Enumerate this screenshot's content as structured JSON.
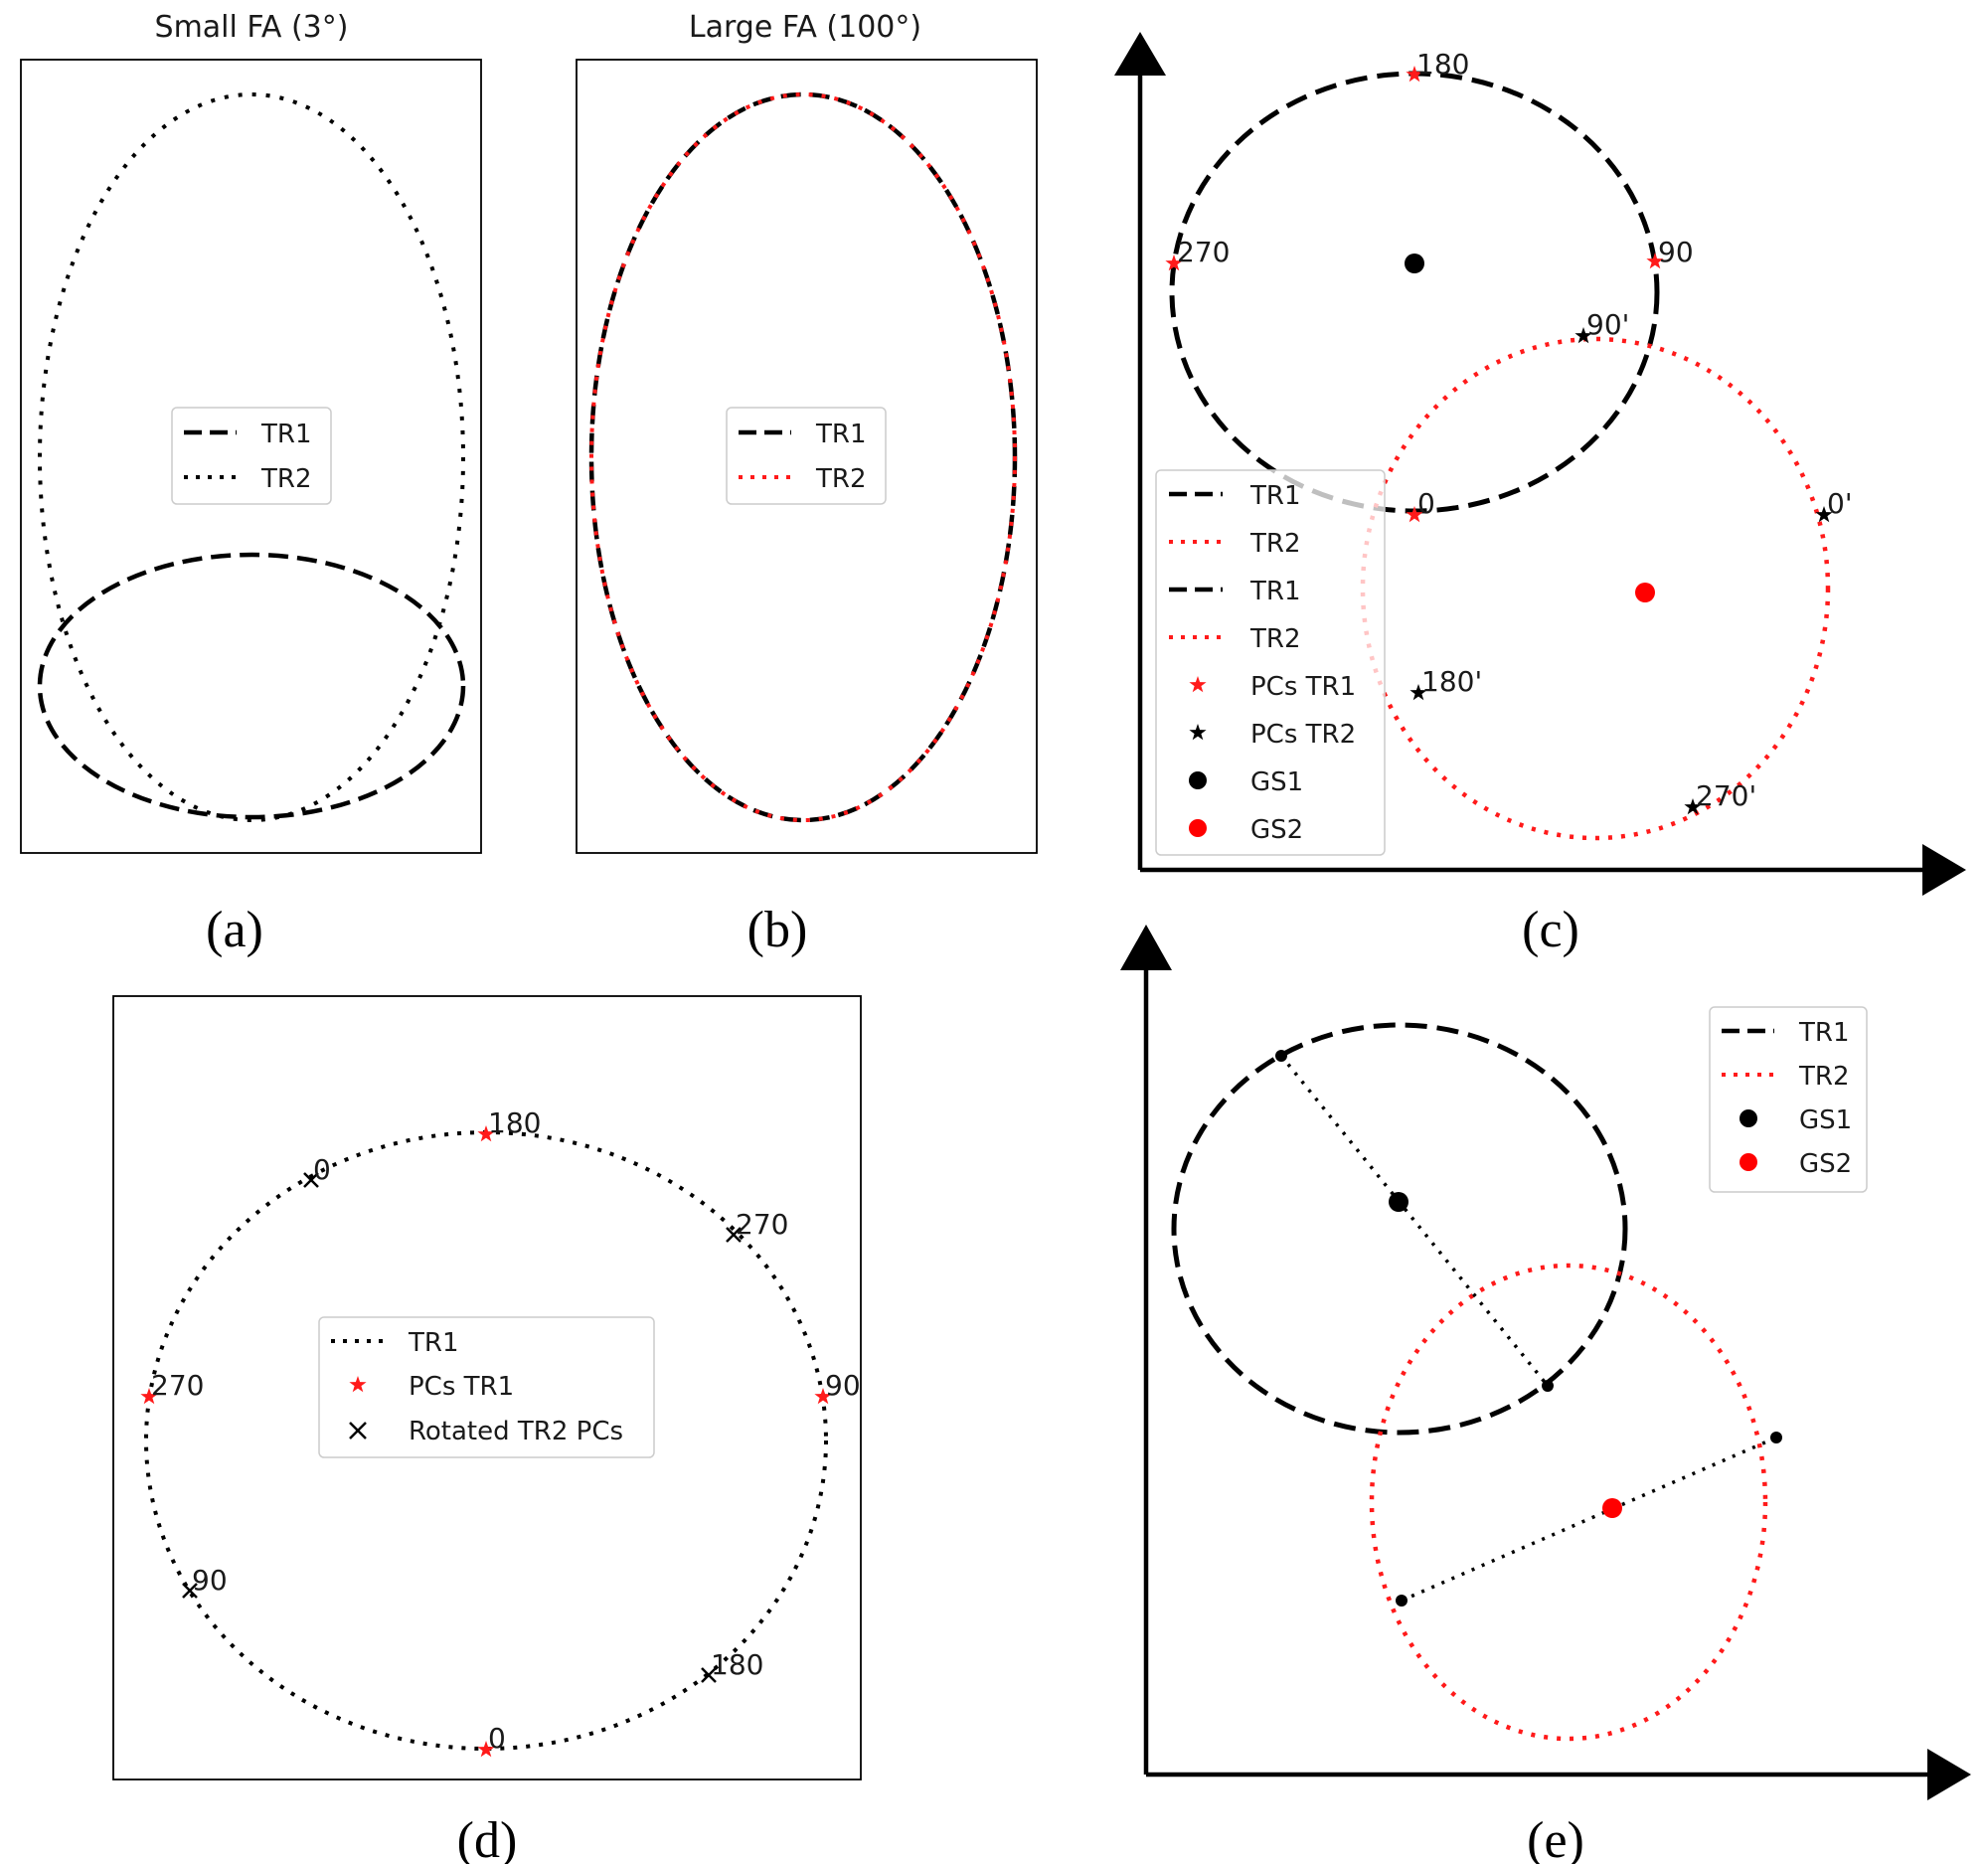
{
  "panel_a": {
    "title": "Small FA (3°)",
    "caption": "(a)",
    "legend": [
      "TR1",
      "TR2"
    ]
  },
  "panel_b": {
    "title": "Large FA (100°)",
    "caption": "(b)",
    "legend": [
      "TR1",
      "TR2"
    ]
  },
  "panel_c": {
    "caption": "(c)",
    "tr1_labels": [
      "180",
      "270",
      "90",
      "0"
    ],
    "tr2_labels": [
      "90'",
      "0'",
      "180'",
      "270'"
    ],
    "legend": [
      "TR1",
      "TR2",
      "TR1",
      "TR2",
      "PCs TR1",
      "PCs TR2",
      "GS1",
      "GS2"
    ]
  },
  "panel_d": {
    "caption": "(d)",
    "tr1_labels": [
      "180",
      "270",
      "90",
      "0"
    ],
    "tr2_labels": [
      "0",
      "270",
      "90",
      "180"
    ],
    "legend": [
      "TR1",
      "PCs TR1",
      "Rotated TR2 PCs"
    ]
  },
  "panel_e": {
    "caption": "(e)",
    "legend": [
      "TR1",
      "TR2",
      "GS1",
      "GS2"
    ]
  },
  "colors": {
    "tr1": "#000000",
    "tr2_red": "#ff1a1a",
    "gs1": "#000000",
    "gs2": "#ff0000"
  }
}
